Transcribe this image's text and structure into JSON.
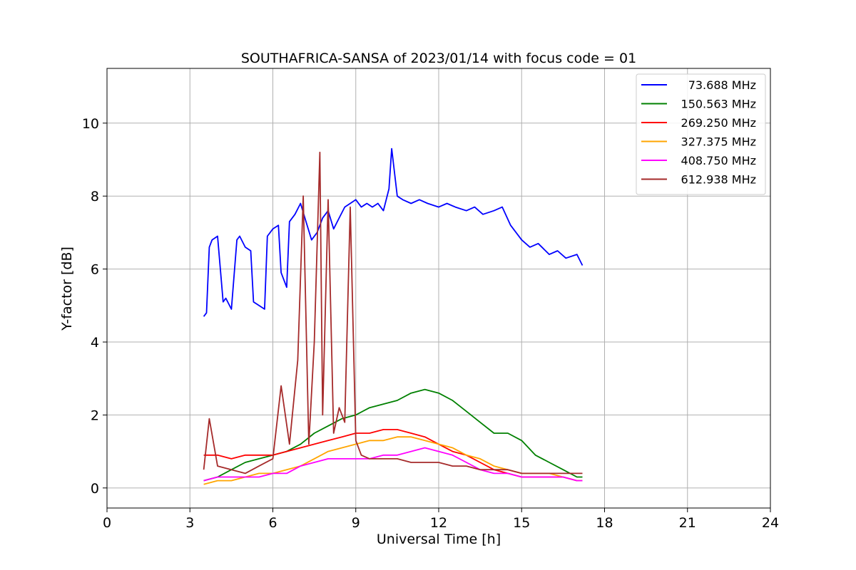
{
  "chart_data": {
    "type": "line",
    "title": "SOUTHAFRICA-SANSA of 2023/01/14 with focus code = 01",
    "xlabel": "Universal Time [h]",
    "ylabel": "Y-factor [dB]",
    "xlim": [
      0,
      24
    ],
    "ylim": [
      -0.55,
      11.5
    ],
    "xticks": [
      0,
      3,
      6,
      9,
      12,
      15,
      18,
      21,
      24
    ],
    "yticks": [
      0,
      2,
      4,
      6,
      8,
      10
    ],
    "grid": true,
    "legend_position": "top-right",
    "series": [
      {
        "name": "73.688 MHz",
        "color": "#0000ff",
        "x": [
          3.5,
          3.6,
          3.7,
          3.8,
          4.0,
          4.2,
          4.3,
          4.5,
          4.7,
          4.8,
          5.0,
          5.2,
          5.3,
          5.5,
          5.7,
          5.8,
          6.0,
          6.2,
          6.3,
          6.5,
          6.6,
          6.8,
          7.0,
          7.2,
          7.4,
          7.6,
          7.8,
          8.0,
          8.2,
          8.4,
          8.6,
          8.8,
          9.0,
          9.2,
          9.4,
          9.6,
          9.8,
          10.0,
          10.2,
          10.3,
          10.5,
          10.7,
          11.0,
          11.3,
          11.6,
          12.0,
          12.3,
          12.6,
          13.0,
          13.3,
          13.6,
          14.0,
          14.3,
          14.6,
          15.0,
          15.3,
          15.6,
          16.0,
          16.3,
          16.6,
          17.0,
          17.2
        ],
        "y": [
          4.7,
          4.8,
          6.6,
          6.8,
          6.9,
          5.1,
          5.2,
          4.9,
          6.8,
          6.9,
          6.6,
          6.5,
          5.1,
          5.0,
          4.9,
          6.9,
          7.1,
          7.2,
          5.9,
          5.5,
          7.3,
          7.5,
          7.8,
          7.3,
          6.8,
          7.0,
          7.4,
          7.6,
          7.1,
          7.4,
          7.7,
          7.8,
          7.9,
          7.7,
          7.8,
          7.7,
          7.8,
          7.6,
          8.2,
          9.3,
          8.0,
          7.9,
          7.8,
          7.9,
          7.8,
          7.7,
          7.8,
          7.7,
          7.6,
          7.7,
          7.5,
          7.6,
          7.7,
          7.2,
          6.8,
          6.6,
          6.7,
          6.4,
          6.5,
          6.3,
          6.4,
          6.1
        ]
      },
      {
        "name": "150.563 MHz",
        "color": "#008000",
        "x": [
          3.5,
          4.0,
          4.5,
          5.0,
          5.5,
          6.0,
          6.5,
          7.0,
          7.5,
          8.0,
          8.5,
          9.0,
          9.5,
          10.0,
          10.5,
          11.0,
          11.5,
          12.0,
          12.5,
          13.0,
          13.5,
          14.0,
          14.5,
          15.0,
          15.5,
          16.0,
          16.5,
          17.0,
          17.2
        ],
        "y": [
          0.2,
          0.3,
          0.5,
          0.7,
          0.8,
          0.9,
          1.0,
          1.2,
          1.5,
          1.7,
          1.9,
          2.0,
          2.2,
          2.3,
          2.4,
          2.6,
          2.7,
          2.6,
          2.4,
          2.1,
          1.8,
          1.5,
          1.5,
          1.3,
          0.9,
          0.7,
          0.5,
          0.3,
          0.3
        ]
      },
      {
        "name": "269.250 MHz",
        "color": "#ff0000",
        "x": [
          3.5,
          4.0,
          4.5,
          5.0,
          5.5,
          6.0,
          6.5,
          7.0,
          7.5,
          8.0,
          8.5,
          9.0,
          9.5,
          10.0,
          10.5,
          11.0,
          11.5,
          12.0,
          12.5,
          13.0,
          13.5,
          14.0,
          14.5,
          15.0,
          15.5,
          16.0,
          16.5,
          17.0,
          17.2
        ],
        "y": [
          0.9,
          0.9,
          0.8,
          0.9,
          0.9,
          0.9,
          1.0,
          1.1,
          1.2,
          1.3,
          1.4,
          1.5,
          1.5,
          1.6,
          1.6,
          1.5,
          1.4,
          1.2,
          1.0,
          0.9,
          0.7,
          0.5,
          0.4,
          0.3,
          0.3,
          0.3,
          0.3,
          0.2,
          0.2
        ]
      },
      {
        "name": "327.375 MHz",
        "color": "#ffa500",
        "x": [
          3.5,
          4.0,
          4.5,
          5.0,
          5.5,
          6.0,
          6.5,
          7.0,
          7.5,
          8.0,
          8.5,
          9.0,
          9.5,
          10.0,
          10.5,
          11.0,
          11.5,
          12.0,
          12.5,
          13.0,
          13.5,
          14.0,
          14.5,
          15.0,
          15.5,
          16.0,
          16.5,
          17.0,
          17.2
        ],
        "y": [
          0.1,
          0.2,
          0.2,
          0.3,
          0.4,
          0.4,
          0.5,
          0.6,
          0.8,
          1.0,
          1.1,
          1.2,
          1.3,
          1.3,
          1.4,
          1.4,
          1.3,
          1.2,
          1.1,
          0.9,
          0.8,
          0.6,
          0.5,
          0.4,
          0.4,
          0.4,
          0.3,
          0.2,
          0.2
        ]
      },
      {
        "name": "408.750 MHz",
        "color": "#ff00ff",
        "x": [
          3.5,
          4.0,
          4.5,
          5.0,
          5.5,
          6.0,
          6.5,
          7.0,
          7.5,
          8.0,
          8.5,
          9.0,
          9.5,
          10.0,
          10.5,
          11.0,
          11.5,
          12.0,
          12.5,
          13.0,
          13.5,
          14.0,
          14.5,
          15.0,
          15.5,
          16.0,
          16.5,
          17.0,
          17.2
        ],
        "y": [
          0.2,
          0.3,
          0.3,
          0.3,
          0.3,
          0.4,
          0.4,
          0.6,
          0.7,
          0.8,
          0.8,
          0.8,
          0.8,
          0.9,
          0.9,
          1.0,
          1.1,
          1.0,
          0.9,
          0.7,
          0.5,
          0.4,
          0.4,
          0.3,
          0.3,
          0.3,
          0.3,
          0.2,
          0.2
        ]
      },
      {
        "name": "612.938 MHz",
        "color": "#a52a2a",
        "x": [
          3.5,
          3.7,
          4.0,
          4.5,
          5.0,
          5.5,
          6.0,
          6.3,
          6.6,
          6.9,
          7.1,
          7.3,
          7.5,
          7.7,
          7.8,
          8.0,
          8.2,
          8.4,
          8.6,
          8.8,
          9.0,
          9.2,
          9.5,
          10.0,
          10.5,
          11.0,
          11.5,
          12.0,
          12.5,
          13.0,
          13.5,
          14.0,
          14.5,
          15.0,
          15.5,
          16.0,
          16.5,
          17.0,
          17.2
        ],
        "y": [
          0.5,
          1.9,
          0.6,
          0.5,
          0.4,
          0.6,
          0.8,
          2.8,
          1.2,
          3.5,
          8.0,
          1.2,
          4.0,
          9.2,
          2.0,
          7.9,
          1.5,
          2.2,
          1.8,
          7.7,
          1.3,
          0.9,
          0.8,
          0.8,
          0.8,
          0.7,
          0.7,
          0.7,
          0.6,
          0.6,
          0.5,
          0.5,
          0.5,
          0.4,
          0.4,
          0.4,
          0.4,
          0.4,
          0.4
        ]
      }
    ]
  }
}
